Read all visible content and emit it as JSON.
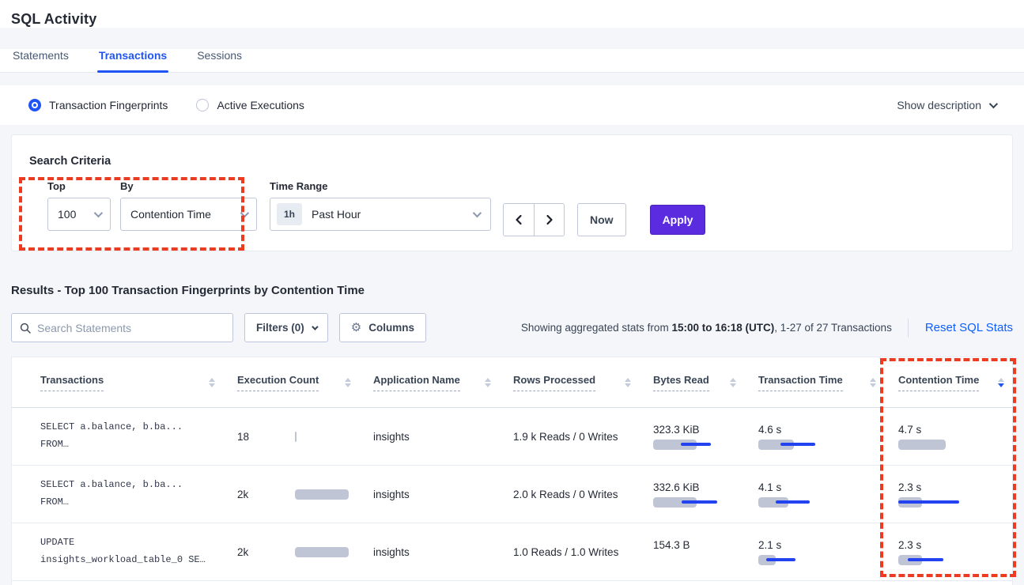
{
  "page": {
    "title": "SQL Activity",
    "tabs": [
      {
        "label": "Statements"
      },
      {
        "label": "Transactions"
      },
      {
        "label": "Sessions"
      }
    ],
    "radios": [
      {
        "label": "Transaction Fingerprints",
        "selected": true
      },
      {
        "label": "Active Executions",
        "selected": false
      }
    ],
    "show_description_label": "Show description"
  },
  "search_criteria": {
    "heading": "Search Criteria",
    "top": {
      "label": "Top",
      "value": "100"
    },
    "by": {
      "label": "By",
      "value": "Contention Time"
    },
    "time_range": {
      "label": "Time Range",
      "badge": "1h",
      "value": "Past Hour"
    },
    "now_label": "Now",
    "apply_label": "Apply"
  },
  "results": {
    "heading": "Results - Top 100 Transaction Fingerprints by Contention Time",
    "search_placeholder": "Search Statements",
    "filters_label": "Filters (0)",
    "columns_label": "Columns",
    "stats_prefix": "Showing aggregated stats from ",
    "stats_bold": "15:00 to 16:18 (UTC)",
    "stats_suffix": ", 1-27 of 27 Transactions",
    "reset_label": "Reset SQL Stats"
  },
  "table": {
    "headers": [
      "Transactions",
      "Execution Count",
      "Application Name",
      "Rows Processed",
      "Bytes Read",
      "Transaction Time",
      "Contention Time"
    ],
    "sorted_by": "Contention Time",
    "sort_direction": "desc",
    "rows": [
      {
        "sql_line1": "SELECT a.balance, b.ba...",
        "sql_line2": "FROM…",
        "execution_count": "18",
        "application": "insights",
        "rows_processed": "1.9 k Reads / 0 Writes",
        "bytes_read": "323.3 KiB",
        "transaction_time": "4.6 s",
        "contention_time": "4.7 s",
        "bars": {
          "exec": 2,
          "bytes": 55,
          "bytes_line": [
            35,
            73
          ],
          "txn": 45,
          "txn_line": [
            28,
            72
          ],
          "cont": 60
        }
      },
      {
        "sql_line1": "SELECT a.balance, b.ba...",
        "sql_line2": "FROM…",
        "execution_count": "2k",
        "application": "insights",
        "rows_processed": "2.0 k Reads / 0 Writes",
        "bytes_read": "332.6 KiB",
        "transaction_time": "4.1 s",
        "contention_time": "2.3 s",
        "bars": {
          "exec": 68,
          "bytes": 55,
          "bytes_line": [
            36,
            81
          ],
          "txn": 38,
          "txn_line": [
            22,
            65
          ],
          "cont": 30,
          "cont_line": [
            0,
            77
          ]
        }
      },
      {
        "sql_line1": "UPDATE",
        "sql_line2": "insights_workload_table_0 SE…",
        "execution_count": "2k",
        "application": "insights",
        "rows_processed": "1.0 Reads / 1.0 Writes",
        "bytes_read": "154.3 B",
        "transaction_time": "2.1 s",
        "contention_time": "2.3 s",
        "bars": {
          "exec": 68,
          "txn": 22,
          "txn_line": [
            10,
            47
          ],
          "cont": 30,
          "cont_line": [
            12,
            57
          ]
        }
      }
    ]
  },
  "colors": {
    "accent_blue": "#1F55F5",
    "link_blue": "#0D5EFF",
    "apply_purple": "#5B2BE0",
    "annotation_red": "#ED3B22",
    "bar_gray": "#C0C5D6",
    "bar_line_blue": "#2342F0"
  }
}
